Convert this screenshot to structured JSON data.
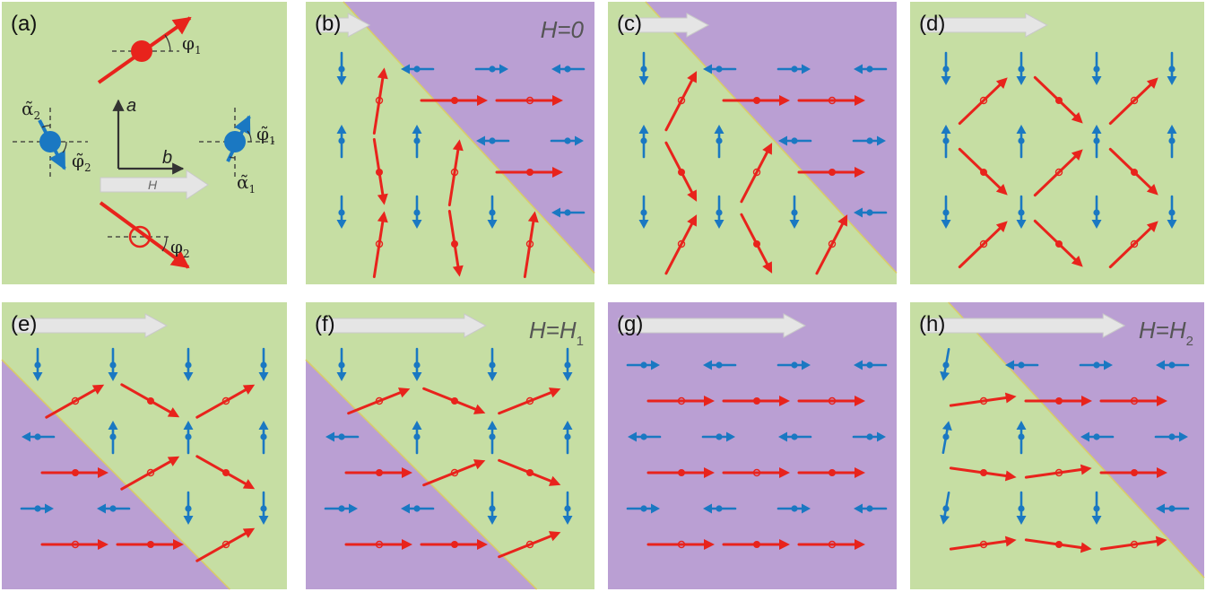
{
  "colors": {
    "green": "#c6dea3",
    "purple": "#ba9fd3",
    "red": "#e8231c",
    "blue": "#1a78c2",
    "field_arrow": "#e5e5e5",
    "field_arrow_edge": "#c9c9c9",
    "domain_wall": "#d8cc6a"
  },
  "legend_panel": {
    "label": "(a)",
    "axis_a": "a",
    "axis_b": "b",
    "field": "H",
    "phi1": "φ",
    "phi1_sub": "1",
    "phi2": "φ",
    "phi2_sub": "2",
    "alpha1": "α̃",
    "alpha1_sub": "1",
    "alpha2": "α̃",
    "alpha2_sub": "2",
    "phit1": "φ̃",
    "phit1_sub": "1",
    "phit2": "φ̃",
    "phit2_sub": "2"
  },
  "panels": [
    {
      "label": "(b)",
      "h_text": "H=0",
      "h_sub": "",
      "field_strength": 0.08,
      "domain": "upper-purple"
    },
    {
      "label": "(c)",
      "h_text": "",
      "h_sub": "",
      "field_strength": 0.25,
      "domain": "upper-purple"
    },
    {
      "label": "(d)",
      "h_text": "",
      "h_sub": "",
      "field_strength": 0.42,
      "domain": "none-green"
    },
    {
      "label": "(e)",
      "h_text": "",
      "h_sub": "",
      "field_strength": 0.55,
      "domain": "lower-purple"
    },
    {
      "label": "(f)",
      "h_text": "H=H",
      "h_sub": "1",
      "field_strength": 0.62,
      "domain": "lower-purple"
    },
    {
      "label": "(g)",
      "h_text": "",
      "h_sub": "",
      "field_strength": 0.7,
      "domain": "none-purple"
    },
    {
      "label": "(h)",
      "h_text": "H=H",
      "h_sub": "2",
      "field_strength": 0.78,
      "domain": "upper-purple"
    }
  ]
}
